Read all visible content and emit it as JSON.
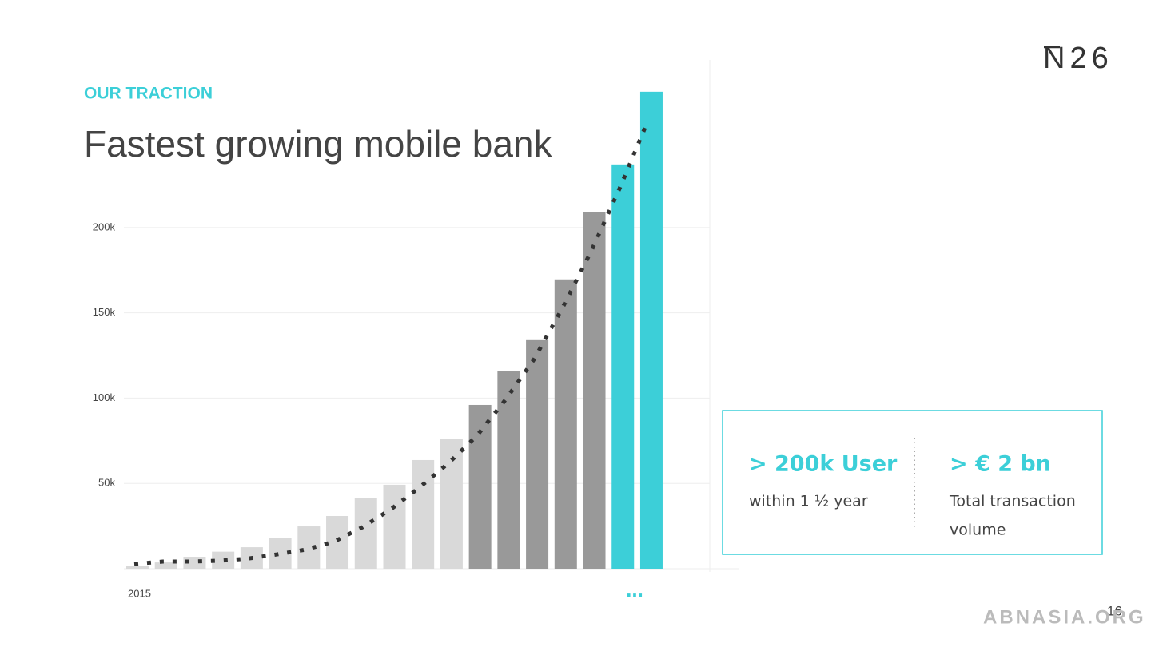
{
  "slide": {
    "logo": "N26",
    "kicker": "OUR TRACTION",
    "heading": "Fastest growing mobile bank",
    "stats": [
      {
        "headline": "> 200k User",
        "detail": "within  1 ½ year"
      },
      {
        "headline": "> € 2 bn",
        "detail_lines": [
          "Total transaction",
          "volume"
        ]
      }
    ],
    "page_number": "16",
    "watermark": "ABNASIA.ORG"
  },
  "chart_data": {
    "type": "bar",
    "categories": [
      "2015",
      null,
      null,
      null,
      null,
      null,
      null,
      null,
      null,
      null,
      null,
      null,
      null,
      null,
      null,
      null,
      null,
      null,
      null
    ],
    "values": [
      1400,
      3700,
      7000,
      10000,
      12600,
      17800,
      24800,
      30900,
      41200,
      49200,
      63700,
      75900,
      96000,
      116000,
      134000,
      169600,
      208900,
      237000,
      279600
    ],
    "colors": [
      "#d9d9d9",
      "#d9d9d9",
      "#d9d9d9",
      "#d9d9d9",
      "#d9d9d9",
      "#d9d9d9",
      "#d9d9d9",
      "#d9d9d9",
      "#d9d9d9",
      "#d9d9d9",
      "#d9d9d9",
      "#d9d9d9",
      "#999999",
      "#999999",
      "#999999",
      "#999999",
      "#999999",
      "#3ccfd8",
      "#3ccfd8"
    ],
    "trendline": {
      "color": "#333333",
      "values": [
        2800,
        4200,
        4200,
        4700,
        6000,
        8400,
        11200,
        15900,
        24400,
        35000,
        47800,
        61800,
        78000,
        99000,
        122700,
        153000,
        186000,
        223000,
        263000
      ]
    },
    "annotation": "...",
    "ylim": [
      0,
      280000
    ],
    "yticks": [
      {
        "value": 50000,
        "label": "50k"
      },
      {
        "value": 100000,
        "label": "100k"
      },
      {
        "value": 150000,
        "label": "150k"
      },
      {
        "value": 200000,
        "label": "200k"
      }
    ],
    "grid": true
  }
}
